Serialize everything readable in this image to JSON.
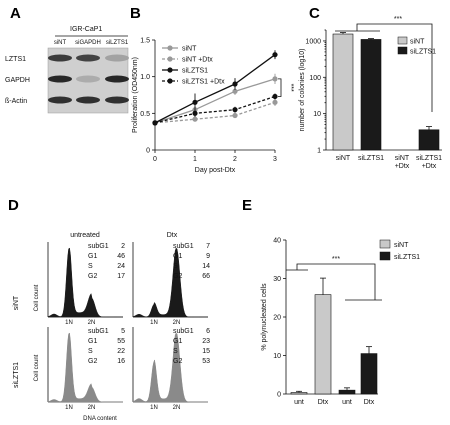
{
  "panels": {
    "A": "A",
    "B": "B",
    "C": "C",
    "D": "D",
    "E": "E"
  },
  "western": {
    "cell_line": "IGR-CaP1",
    "lanes": [
      "siNT",
      "siGAPDH",
      "siLZTS1"
    ],
    "rows": [
      "LZTS1",
      "GAPDH",
      "ß-Actin"
    ],
    "intensity": [
      [
        0.75,
        0.7,
        0.2
      ],
      [
        0.85,
        0.15,
        0.85
      ],
      [
        0.8,
        0.8,
        0.8
      ]
    ]
  },
  "panelE_bracket_label": "***",
  "panelC_bracket_label": "***",
  "panelB_sig_label": "***",
  "flow": {
    "columns": [
      "untreated",
      "Dtx"
    ],
    "rows": [
      "siNT",
      "siLZTS1"
    ],
    "y_label": "Cell count",
    "x_label": "DNA content",
    "peak_labels": [
      "1N",
      "2N"
    ],
    "phase_labels": [
      "subG1",
      "G1",
      "S",
      "G2"
    ],
    "values": [
      [
        [
          2,
          46,
          24,
          17
        ],
        [
          7,
          9,
          14,
          66
        ]
      ],
      [
        [
          5,
          55,
          22,
          16
        ],
        [
          6,
          23,
          15,
          53
        ]
      ]
    ],
    "colors": [
      "#1a1a1a",
      "#8a8a8a"
    ]
  },
  "chart_data": [
    {
      "type": "line",
      "panel": "B",
      "xlabel": "Day post-Dtx",
      "ylabel": "Proliferation (OD450nm)",
      "x": [
        0,
        1,
        2,
        3
      ],
      "xlim": [
        0,
        3
      ],
      "ylim": [
        0,
        1.5
      ],
      "xticks": [
        "0",
        "1",
        "2",
        "3"
      ],
      "yticks": [
        "0",
        "0.5",
        "1.0",
        "1.5"
      ],
      "legend_position": "top-left",
      "series": [
        {
          "name": "siNT",
          "values": [
            0.37,
            0.55,
            0.8,
            0.97
          ],
          "errors": [
            0.02,
            0.05,
            0.05,
            0.07
          ],
          "color": "#999999",
          "dash": false
        },
        {
          "name": "siNT +Dtx",
          "values": [
            0.37,
            0.42,
            0.47,
            0.65
          ],
          "errors": [
            0.02,
            0.03,
            0.03,
            0.05
          ],
          "color": "#999999",
          "dash": true
        },
        {
          "name": "siLZTS1",
          "values": [
            0.37,
            0.65,
            0.9,
            1.3
          ],
          "errors": [
            0.02,
            0.12,
            0.08,
            0.06
          ],
          "color": "#111111",
          "dash": false
        },
        {
          "name": "siLZTS1 +Dtx",
          "values": [
            0.37,
            0.5,
            0.55,
            0.73
          ],
          "errors": [
            0.02,
            0.05,
            0.04,
            0.04
          ],
          "color": "#111111",
          "dash": true
        }
      ]
    },
    {
      "type": "bar",
      "panel": "C",
      "ylabel": "number of colonies (log10)",
      "yscale": "log",
      "ylim": [
        1,
        2000
      ],
      "yticks": [
        "1",
        "10",
        "100",
        "1000"
      ],
      "categories": [
        "siNT",
        "siLZTS1",
        "siNT\n+Dtx",
        "siLZTS1\n+Dtx"
      ],
      "values": [
        1550,
        1100,
        0,
        3.6
      ],
      "errors": [
        150,
        60,
        0,
        0.8
      ],
      "colors": [
        "#c9c9c9",
        "#1a1a1a",
        "#c9c9c9",
        "#1a1a1a"
      ],
      "legend": [
        "siNT",
        "siLZTS1"
      ],
      "legend_position": "right"
    },
    {
      "type": "bar",
      "panel": "E",
      "ylabel": "% polynucleated cells",
      "ylim": [
        0,
        40
      ],
      "yticks": [
        "0",
        "10",
        "20",
        "30",
        "40"
      ],
      "categories": [
        "unt",
        "Dtx",
        "unt",
        "Dtx"
      ],
      "values": [
        0.4,
        25.8,
        1.0,
        10.5
      ],
      "errors": [
        0.3,
        4.3,
        0.6,
        1.8
      ],
      "colors": [
        "#c9c9c9",
        "#c9c9c9",
        "#1a1a1a",
        "#1a1a1a"
      ],
      "legend": [
        "siNT",
        "siLZTS1"
      ],
      "legend_position": "top-right"
    }
  ]
}
